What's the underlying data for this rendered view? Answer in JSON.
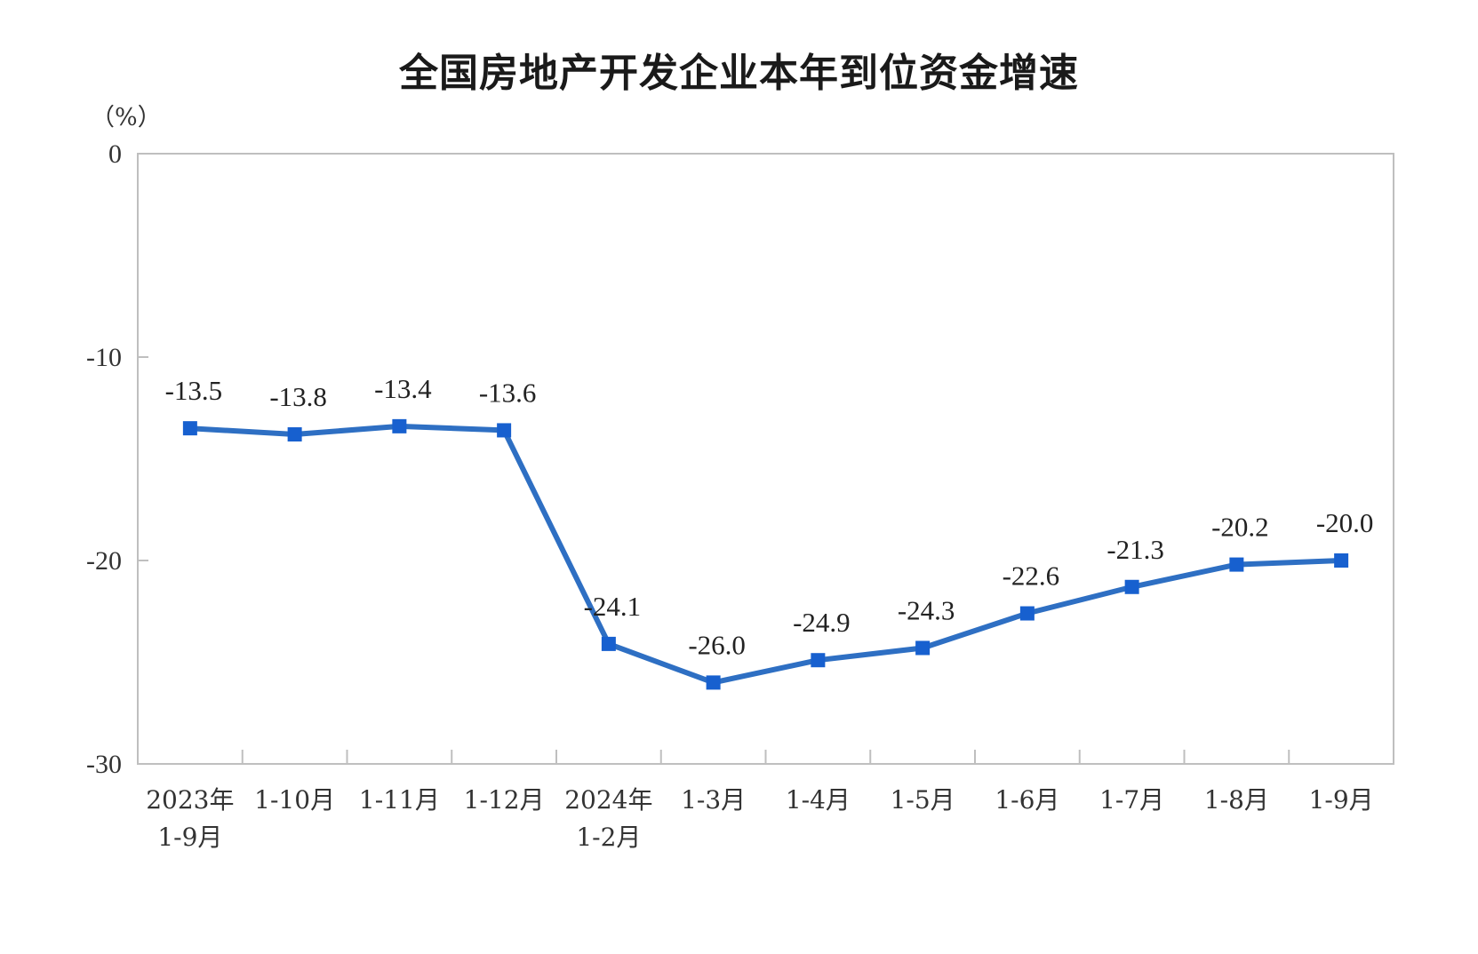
{
  "chart_data": {
    "type": "line",
    "title": "全国房地产开发企业本年到位资金增速",
    "ylabel": "（%）",
    "xlabel": "",
    "ylim": [
      -30,
      0
    ],
    "yticks": [
      0,
      -10,
      -20,
      -30
    ],
    "grid": false,
    "categories": [
      [
        "2023年",
        "1-9月"
      ],
      [
        "1-10月"
      ],
      [
        "1-11月"
      ],
      [
        "1-12月"
      ],
      [
        "2024年",
        "1-2月"
      ],
      [
        "1-3月"
      ],
      [
        "1-4月"
      ],
      [
        "1-5月"
      ],
      [
        "1-6月"
      ],
      [
        "1-7月"
      ],
      [
        "1-8月"
      ],
      [
        "1-9月"
      ]
    ],
    "series": [
      {
        "values": [
          -13.5,
          -13.8,
          -13.4,
          -13.6,
          -24.1,
          -26.0,
          -24.9,
          -24.3,
          -22.6,
          -21.3,
          -20.2,
          -20.0
        ],
        "labels": [
          "-13.5",
          "-13.8",
          "-13.4",
          "-13.6",
          "-24.1",
          "-26.0",
          "-24.9",
          "-24.3",
          "-22.6",
          "-21.3",
          "-20.2",
          "-20.0"
        ],
        "color": "#2e6fc3",
        "marker_color": "#1760cf"
      }
    ]
  }
}
